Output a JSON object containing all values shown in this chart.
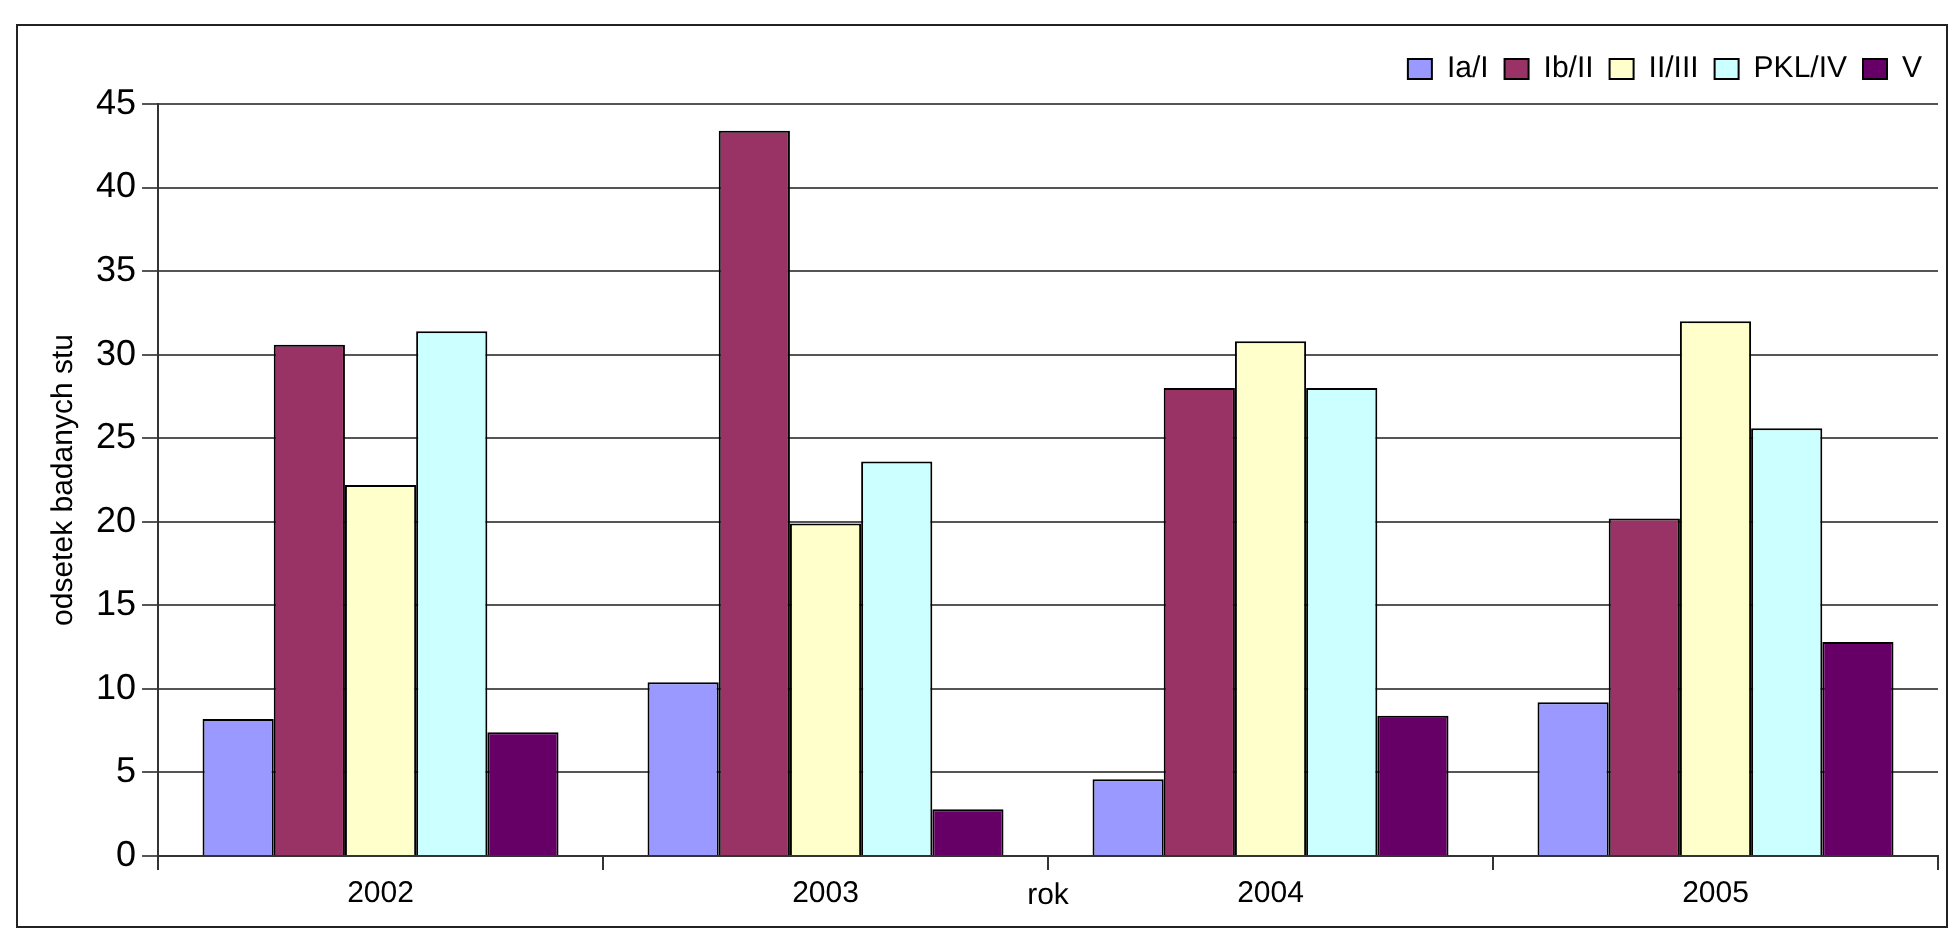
{
  "chart_data": {
    "type": "bar",
    "xlabel": "rok",
    "ylabel": "odsetek badanych stu",
    "categories": [
      "2002",
      "2003",
      "2004",
      "2005"
    ],
    "series": [
      {
        "name": "Ia/I",
        "color": "#9999ff",
        "values": [
          8.2,
          10.4,
          4.6,
          9.2
        ]
      },
      {
        "name": "Ib/II",
        "color": "#993366",
        "values": [
          30.6,
          43.4,
          28.0,
          20.2
        ]
      },
      {
        "name": "II/III",
        "color": "#ffffcc",
        "values": [
          22.2,
          19.9,
          30.8,
          32.0
        ]
      },
      {
        "name": "PKL/IV",
        "color": "#ccffff",
        "values": [
          31.4,
          23.6,
          28.0,
          25.6
        ]
      },
      {
        "name": "V",
        "color": "#660066",
        "values": [
          7.4,
          2.8,
          8.4,
          12.8
        ]
      }
    ],
    "ylim": [
      0,
      45
    ],
    "yticks": [
      0,
      5,
      10,
      15,
      20,
      25,
      30,
      35,
      40,
      45
    ],
    "grid": "y",
    "legend": "top right"
  }
}
